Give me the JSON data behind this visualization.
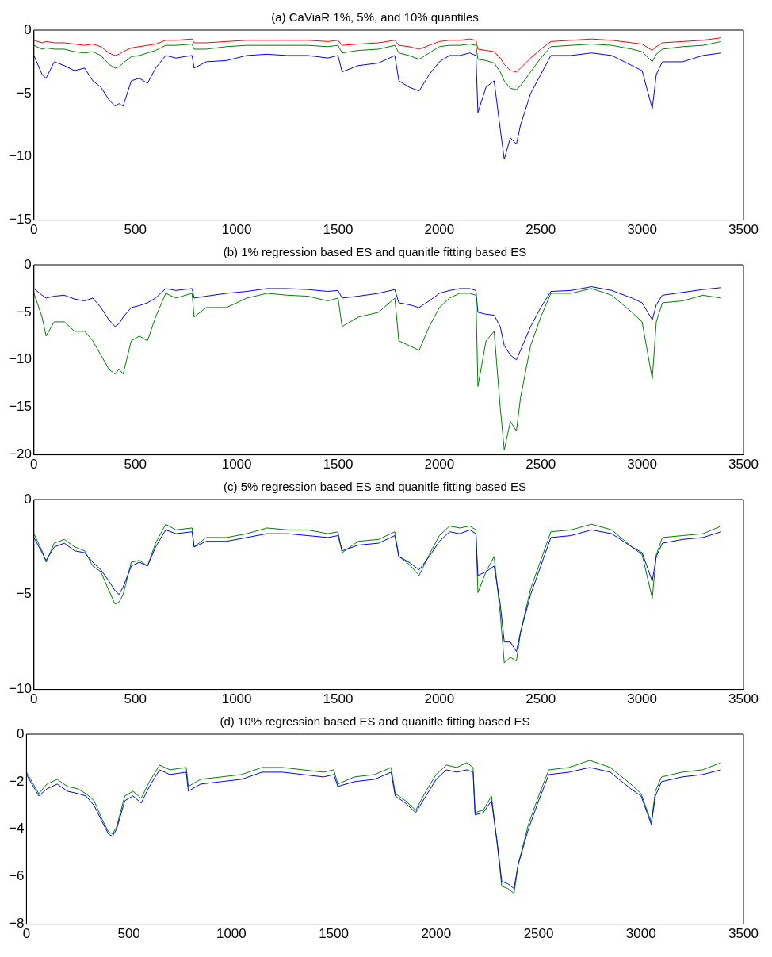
{
  "chart_data": [
    {
      "type": "line",
      "title": "(a) CaViaR 1%, 5%, and 10% quantiles",
      "xlim": [
        0,
        3500
      ],
      "xticks": [
        0,
        500,
        1000,
        1500,
        2000,
        2500,
        3000,
        3500
      ],
      "ylim": [
        -15,
        0
      ],
      "yticks": [
        -15,
        -10,
        -5,
        0
      ],
      "x": [
        0,
        40,
        60,
        100,
        150,
        200,
        250,
        290,
        330,
        370,
        400,
        420,
        440,
        480,
        520,
        560,
        600,
        650,
        700,
        780,
        790,
        850,
        950,
        1050,
        1150,
        1250,
        1350,
        1450,
        1500,
        1520,
        1600,
        1700,
        1780,
        1800,
        1850,
        1900,
        1950,
        2000,
        2050,
        2100,
        2150,
        2180,
        2190,
        2230,
        2270,
        2300,
        2320,
        2350,
        2380,
        2400,
        2450,
        2500,
        2550,
        2650,
        2750,
        2850,
        2950,
        3000,
        3050,
        3070,
        3100,
        3200,
        3300,
        3390
      ],
      "series": [
        {
          "color": "#ff0000",
          "values": [
            -0.8,
            -1,
            -0.9,
            -1,
            -1,
            -1.1,
            -1.2,
            -1.1,
            -1.3,
            -1.8,
            -2,
            -1.9,
            -1.7,
            -1.4,
            -1.3,
            -1.2,
            -1.1,
            -0.8,
            -0.8,
            -0.7,
            -1,
            -1,
            -0.9,
            -0.8,
            -0.8,
            -0.8,
            -0.8,
            -0.9,
            -0.8,
            -1.2,
            -1.1,
            -1,
            -0.8,
            -1.2,
            -1.3,
            -1.5,
            -1.2,
            -0.9,
            -0.8,
            -0.8,
            -0.7,
            -0.8,
            -1.5,
            -1.6,
            -1.7,
            -2.2,
            -2.7,
            -3.2,
            -3.3,
            -3,
            -2.2,
            -1.5,
            -0.9,
            -0.8,
            -0.7,
            -0.8,
            -1,
            -1.1,
            -1.6,
            -1.3,
            -1,
            -0.9,
            -0.8,
            -0.6
          ]
        },
        {
          "color": "#008000",
          "values": [
            -1.2,
            -1.5,
            -1.4,
            -1.5,
            -1.5,
            -1.7,
            -1.8,
            -1.7,
            -2,
            -2.7,
            -3,
            -2.9,
            -2.6,
            -2.1,
            -2,
            -1.8,
            -1.6,
            -1.2,
            -1.2,
            -1.1,
            -1.5,
            -1.5,
            -1.3,
            -1.2,
            -1.2,
            -1.2,
            -1.2,
            -1.3,
            -1.2,
            -1.8,
            -1.6,
            -1.5,
            -1.2,
            -1.8,
            -2,
            -2.3,
            -1.8,
            -1.3,
            -1.2,
            -1.2,
            -1.1,
            -1.2,
            -2.3,
            -2.4,
            -2.6,
            -3.3,
            -4,
            -4.6,
            -4.7,
            -4.4,
            -3.3,
            -2.2,
            -1.3,
            -1.2,
            -1.1,
            -1.2,
            -1.5,
            -1.7,
            -2.5,
            -1.9,
            -1.5,
            -1.3,
            -1.2,
            -0.9
          ]
        },
        {
          "color": "#0000ff",
          "values": [
            -2,
            -3.5,
            -3.8,
            -2.5,
            -2.8,
            -3.2,
            -3,
            -4,
            -4.5,
            -5.5,
            -6,
            -5.8,
            -6,
            -4,
            -3.8,
            -4.2,
            -3,
            -2,
            -2.2,
            -2,
            -3,
            -2.5,
            -2.4,
            -2,
            -1.9,
            -2,
            -2,
            -2.2,
            -2,
            -3.3,
            -2.8,
            -2.6,
            -2,
            -4,
            -4.5,
            -4.8,
            -3.5,
            -2.5,
            -2,
            -2,
            -1.8,
            -2,
            -6.5,
            -4.5,
            -4,
            -7.8,
            -10.2,
            -8.5,
            -9,
            -7.5,
            -5,
            -3.5,
            -2,
            -2,
            -1.8,
            -2,
            -2.8,
            -3.2,
            -6.2,
            -3.5,
            -2.5,
            -2.5,
            -2,
            -1.8
          ]
        }
      ]
    },
    {
      "type": "line",
      "title": "(b) 1% regression based ES and quanitle fitting based ES",
      "xlim": [
        0,
        3500
      ],
      "xticks": [
        0,
        500,
        1000,
        1500,
        2000,
        2500,
        3000,
        3500
      ],
      "ylim": [
        -20,
        0
      ],
      "yticks": [
        -20,
        -15,
        -10,
        -5,
        0
      ],
      "x": [
        0,
        40,
        60,
        100,
        150,
        200,
        250,
        290,
        330,
        370,
        400,
        420,
        440,
        480,
        520,
        560,
        600,
        650,
        700,
        780,
        790,
        850,
        950,
        1050,
        1150,
        1250,
        1350,
        1450,
        1500,
        1520,
        1600,
        1700,
        1780,
        1800,
        1850,
        1900,
        1950,
        2000,
        2050,
        2100,
        2150,
        2180,
        2190,
        2230,
        2270,
        2300,
        2320,
        2350,
        2380,
        2400,
        2450,
        2500,
        2550,
        2650,
        2750,
        2850,
        2950,
        3000,
        3050,
        3070,
        3100,
        3200,
        3300,
        3390
      ],
      "series": [
        {
          "color": "#0000ff",
          "values": [
            -2.5,
            -3.2,
            -3.5,
            -3.3,
            -3.2,
            -3.6,
            -3.8,
            -3.5,
            -4.5,
            -5.8,
            -6.5,
            -6.2,
            -5.5,
            -4.5,
            -4.3,
            -4,
            -3.5,
            -2.5,
            -2.7,
            -2.5,
            -3.5,
            -3.3,
            -3,
            -2.8,
            -2.5,
            -2.5,
            -2.6,
            -2.8,
            -2.7,
            -3.5,
            -3.3,
            -3,
            -2.6,
            -4,
            -4.2,
            -4.5,
            -3.8,
            -3,
            -2.7,
            -2.5,
            -2.5,
            -2.7,
            -5,
            -5.2,
            -5.3,
            -6.5,
            -8.5,
            -9.5,
            -10,
            -9,
            -6.5,
            -4.5,
            -2.8,
            -2.7,
            -2.3,
            -2.7,
            -3.5,
            -4,
            -5.8,
            -4.2,
            -3.2,
            -2.9,
            -2.6,
            -2.4
          ]
        },
        {
          "color": "#008000",
          "values": [
            -3,
            -5.5,
            -7.5,
            -6,
            -6,
            -7,
            -7,
            -8,
            -9.5,
            -11,
            -11.5,
            -11,
            -11.5,
            -8,
            -7.5,
            -8,
            -5.5,
            -3,
            -3.5,
            -3,
            -5.5,
            -4.5,
            -4.5,
            -3.5,
            -3,
            -3.2,
            -3.3,
            -3.8,
            -3.5,
            -6.5,
            -5.5,
            -5,
            -3.5,
            -8,
            -8.5,
            -9,
            -6.5,
            -4.5,
            -3.5,
            -3,
            -3,
            -3.2,
            -12.8,
            -8,
            -7,
            -15,
            -19.5,
            -16.5,
            -17.5,
            -14,
            -8.5,
            -5.5,
            -3,
            -3,
            -2.5,
            -3.2,
            -5,
            -6,
            -12,
            -6,
            -4,
            -3.8,
            -3.2,
            -3.5
          ]
        }
      ]
    },
    {
      "type": "line",
      "title": "(c) 5% regression based ES and quanitle fitting based ES",
      "xlim": [
        0,
        3500
      ],
      "xticks": [
        0,
        500,
        1000,
        1500,
        2000,
        2500,
        3000,
        3500
      ],
      "ylim": [
        -10,
        0
      ],
      "yticks": [
        -10,
        -5,
        0
      ],
      "x": [
        0,
        40,
        60,
        100,
        150,
        200,
        250,
        290,
        330,
        370,
        400,
        420,
        440,
        480,
        520,
        560,
        600,
        650,
        700,
        780,
        790,
        850,
        950,
        1050,
        1150,
        1250,
        1350,
        1450,
        1500,
        1520,
        1600,
        1700,
        1780,
        1800,
        1850,
        1900,
        1950,
        2000,
        2050,
        2100,
        2150,
        2180,
        2190,
        2230,
        2270,
        2300,
        2320,
        2350,
        2380,
        2400,
        2450,
        2500,
        2550,
        2650,
        2750,
        2850,
        2950,
        3000,
        3050,
        3070,
        3100,
        3200,
        3300,
        3390
      ],
      "series": [
        {
          "color": "#0000ff",
          "values": [
            -2,
            -2.8,
            -3.2,
            -2.5,
            -2.3,
            -2.7,
            -2.8,
            -3.3,
            -3.7,
            -4.3,
            -4.8,
            -5,
            -4.6,
            -3.5,
            -3.3,
            -3.5,
            -2.5,
            -1.6,
            -1.8,
            -1.7,
            -2.5,
            -2.2,
            -2.2,
            -2,
            -1.8,
            -1.8,
            -1.9,
            -2,
            -1.9,
            -2.7,
            -2.4,
            -2.3,
            -1.9,
            -3,
            -3.3,
            -3.7,
            -3,
            -2.2,
            -1.7,
            -1.8,
            -1.6,
            -1.8,
            -4,
            -3.8,
            -3.5,
            -5.5,
            -7.5,
            -7.5,
            -8,
            -7,
            -5,
            -3.5,
            -2,
            -1.9,
            -1.6,
            -1.8,
            -2.5,
            -2.8,
            -4.3,
            -3,
            -2.3,
            -2.1,
            -2,
            -1.7
          ]
        },
        {
          "color": "#008000",
          "values": [
            -1.8,
            -2.7,
            -3.3,
            -2.3,
            -2.1,
            -2.5,
            -2.7,
            -3.5,
            -3.8,
            -4.8,
            -5.5,
            -5.4,
            -5,
            -3.3,
            -3.2,
            -3.5,
            -2.3,
            -1.3,
            -1.6,
            -1.5,
            -2.5,
            -2,
            -2,
            -1.8,
            -1.5,
            -1.6,
            -1.6,
            -1.8,
            -1.7,
            -2.8,
            -2.2,
            -2.1,
            -1.7,
            -3,
            -3.4,
            -4,
            -2.9,
            -1.9,
            -1.4,
            -1.5,
            -1.4,
            -1.6,
            -4.9,
            -3.8,
            -3,
            -6,
            -8.6,
            -8.3,
            -8.5,
            -7,
            -4.7,
            -3.2,
            -1.7,
            -1.6,
            -1.3,
            -1.6,
            -2.5,
            -2.9,
            -5.2,
            -2.9,
            -2,
            -1.9,
            -1.8,
            -1.4
          ]
        }
      ]
    },
    {
      "type": "line",
      "title": "(d) 10% regression based ES and quanitle fitting based ES",
      "xlim": [
        0,
        3500
      ],
      "xticks": [
        0,
        500,
        1000,
        1500,
        2000,
        2500,
        3000,
        3500
      ],
      "ylim": [
        -8,
        0
      ],
      "yticks": [
        -8,
        -6,
        -4,
        -2,
        0
      ],
      "x": [
        0,
        40,
        60,
        100,
        150,
        200,
        250,
        290,
        330,
        370,
        400,
        420,
        440,
        480,
        520,
        560,
        600,
        650,
        700,
        780,
        790,
        850,
        950,
        1050,
        1150,
        1250,
        1350,
        1450,
        1500,
        1520,
        1600,
        1700,
        1780,
        1800,
        1850,
        1900,
        1950,
        2000,
        2050,
        2100,
        2150,
        2180,
        2190,
        2230,
        2270,
        2300,
        2320,
        2350,
        2380,
        2400,
        2450,
        2500,
        2550,
        2650,
        2750,
        2850,
        2950,
        3000,
        3050,
        3070,
        3100,
        3200,
        3300,
        3390
      ],
      "series": [
        {
          "color": "#0000ff",
          "values": [
            -1.7,
            -2.3,
            -2.6,
            -2.3,
            -2.1,
            -2.4,
            -2.5,
            -2.6,
            -3,
            -3.7,
            -4.2,
            -4.3,
            -4,
            -2.8,
            -2.6,
            -2.9,
            -2.2,
            -1.5,
            -1.7,
            -1.6,
            -2.4,
            -2.1,
            -2,
            -1.9,
            -1.6,
            -1.6,
            -1.7,
            -1.8,
            -1.7,
            -2.2,
            -2,
            -1.9,
            -1.6,
            -2.6,
            -2.9,
            -3.3,
            -2.6,
            -1.9,
            -1.5,
            -1.6,
            -1.5,
            -1.6,
            -3.4,
            -3.3,
            -2.8,
            -4.7,
            -6.2,
            -6.3,
            -6.5,
            -5.5,
            -4,
            -2.8,
            -1.7,
            -1.6,
            -1.4,
            -1.6,
            -2.3,
            -2.6,
            -3.8,
            -2.6,
            -2,
            -1.8,
            -1.7,
            -1.5
          ]
        },
        {
          "color": "#008000",
          "values": [
            -1.6,
            -2.2,
            -2.5,
            -2.1,
            -1.9,
            -2.2,
            -2.3,
            -2.5,
            -2.8,
            -3.6,
            -4.1,
            -4.2,
            -3.9,
            -2.6,
            -2.4,
            -2.7,
            -2,
            -1.3,
            -1.5,
            -1.4,
            -2.2,
            -1.9,
            -1.8,
            -1.7,
            -1.4,
            -1.4,
            -1.5,
            -1.6,
            -1.5,
            -2.1,
            -1.8,
            -1.7,
            -1.4,
            -2.5,
            -2.8,
            -3.2,
            -2.4,
            -1.7,
            -1.3,
            -1.4,
            -1.2,
            -1.4,
            -3.3,
            -3.2,
            -2.6,
            -4.8,
            -6.4,
            -6.5,
            -6.7,
            -5.5,
            -3.8,
            -2.6,
            -1.5,
            -1.4,
            -1.1,
            -1.4,
            -2.1,
            -2.5,
            -3.7,
            -2.4,
            -1.8,
            -1.6,
            -1.5,
            -1.2
          ]
        }
      ]
    }
  ]
}
